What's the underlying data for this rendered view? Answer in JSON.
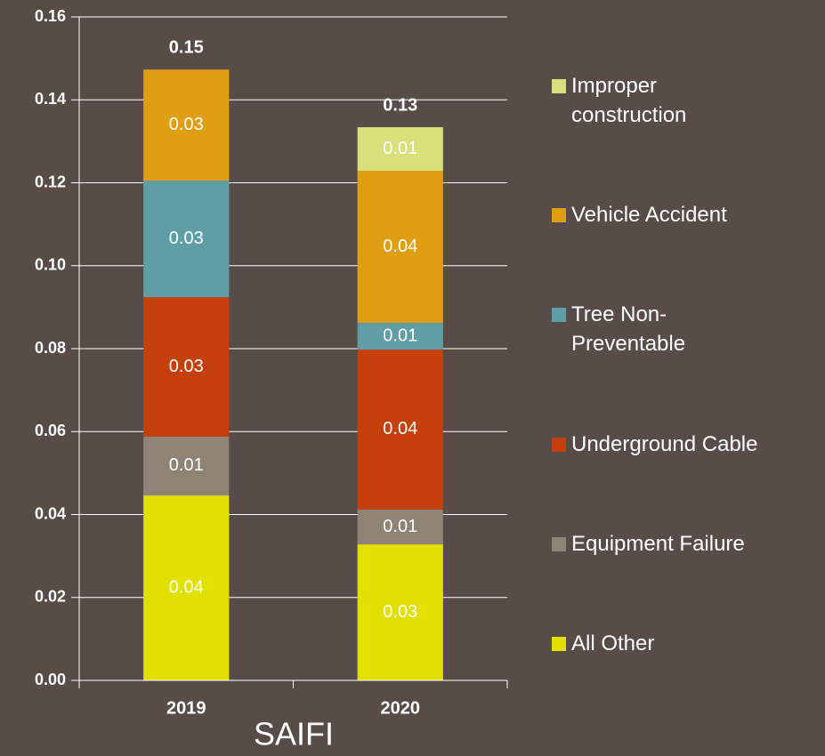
{
  "chart_data": {
    "type": "stacked_bar",
    "x_label": "SAIFI",
    "categories": [
      "2019",
      "2020"
    ],
    "series": [
      {
        "name": "All Other",
        "color": "#e2e000",
        "values": [
          0.0446,
          0.0328
        ],
        "value_labels": [
          "0.04",
          "0.03"
        ]
      },
      {
        "name": "Equipment Failure",
        "color": "#8f8376",
        "values": [
          0.0142,
          0.0084
        ],
        "value_labels": [
          "0.01",
          "0.01"
        ]
      },
      {
        "name": "Underground Cable",
        "color": "#c4400c",
        "values": [
          0.0336,
          0.0386
        ],
        "value_labels": [
          "0.03",
          "0.04"
        ]
      },
      {
        "name": "Tree Non-Preventable",
        "color": "#5f9ea6",
        "values": [
          0.0281,
          0.0064
        ],
        "value_labels": [
          "0.03",
          "0.01"
        ]
      },
      {
        "name": "Vehicle Accident",
        "color": "#e09f12",
        "values": [
          0.0268,
          0.0367
        ],
        "value_labels": [
          "0.03",
          "0.04"
        ]
      },
      {
        "name": "Improper construction",
        "color": "#d9e07b",
        "values": [
          null,
          0.0105
        ],
        "value_labels": [
          null,
          "0.01"
        ]
      }
    ],
    "totals": [
      0.1473,
      0.1334
    ],
    "total_labels": [
      "0.15",
      "0.13"
    ],
    "ylim": [
      0,
      0.16
    ],
    "yticks": [
      {
        "value": 0,
        "label": "0.00"
      },
      {
        "value": 0.02,
        "label": "0.02"
      },
      {
        "value": 0.04,
        "label": "0.04"
      },
      {
        "value": 0.06,
        "label": "0.06"
      },
      {
        "value": 0.08,
        "label": "0.08"
      },
      {
        "value": 0.1,
        "label": "0.10"
      },
      {
        "value": 0.12,
        "label": "0.12"
      },
      {
        "value": 0.14,
        "label": "0.14"
      },
      {
        "value": 0.16,
        "label": "0.16"
      }
    ],
    "grid": true
  }
}
